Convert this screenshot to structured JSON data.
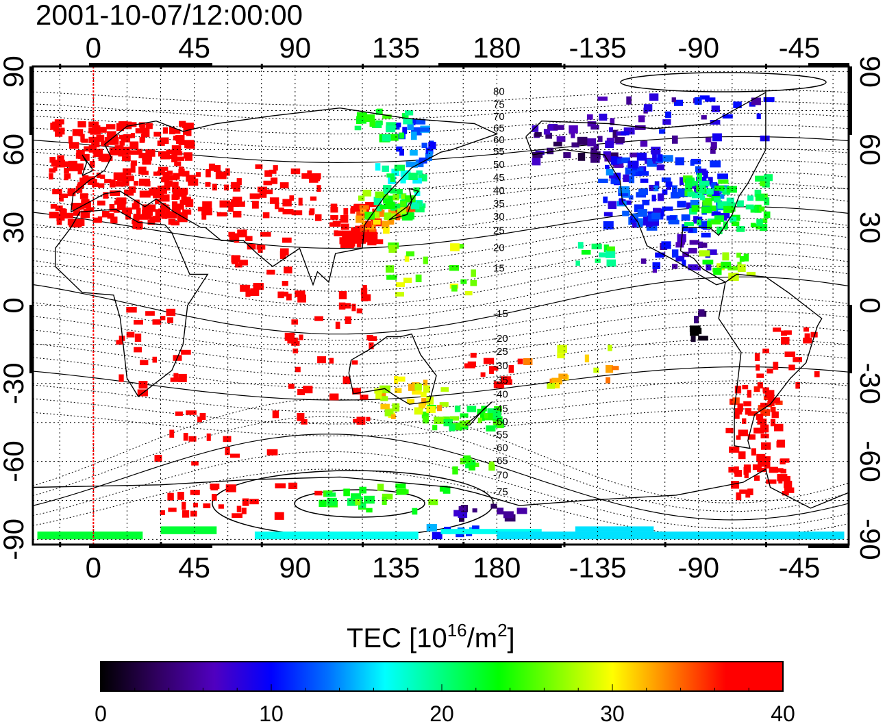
{
  "timestamp": "2001-10-07/12:00:00",
  "top_ticks": [
    {
      "lon": 0,
      "label": "0"
    },
    {
      "lon": 45,
      "label": "45"
    },
    {
      "lon": 90,
      "label": "90"
    },
    {
      "lon": 135,
      "label": "135"
    },
    {
      "lon": 180,
      "label": "180"
    },
    {
      "lon": 225,
      "label": "-135"
    },
    {
      "lon": 270,
      "label": "-90"
    },
    {
      "lon": 315,
      "label": "-45"
    }
  ],
  "bottom_ticks": [
    {
      "lon": 0,
      "label": "0"
    },
    {
      "lon": 45,
      "label": "45"
    },
    {
      "lon": 90,
      "label": "90"
    },
    {
      "lon": 135,
      "label": "135"
    },
    {
      "lon": 180,
      "label": "180"
    },
    {
      "lon": 225,
      "label": "-135"
    },
    {
      "lon": 270,
      "label": "-90"
    },
    {
      "lon": 315,
      "label": "-45"
    }
  ],
  "lat_ticks": [
    {
      "lat": 90,
      "label": "90"
    },
    {
      "lat": 60,
      "label": "60"
    },
    {
      "lat": 30,
      "label": "30"
    },
    {
      "lat": 0,
      "label": "0"
    },
    {
      "lat": -30,
      "label": "-30"
    },
    {
      "lat": -60,
      "label": "-60"
    },
    {
      "lat": -90,
      "label": "-90"
    }
  ],
  "contour_labels": [
    {
      "lat": 81,
      "label": "80"
    },
    {
      "lat": 76,
      "label": "75"
    },
    {
      "lat": 71.5,
      "label": "70"
    },
    {
      "lat": 67,
      "label": "65"
    },
    {
      "lat": 62.5,
      "label": "60"
    },
    {
      "lat": 58,
      "label": "55"
    },
    {
      "lat": 53,
      "label": "50"
    },
    {
      "lat": 48,
      "label": "45"
    },
    {
      "lat": 43,
      "label": "40"
    },
    {
      "lat": 38,
      "label": "35"
    },
    {
      "lat": 33,
      "label": "30"
    },
    {
      "lat": 27.5,
      "label": "25"
    },
    {
      "lat": 21,
      "label": "20"
    },
    {
      "lat": 13,
      "label": "15"
    },
    {
      "lat": -4.5,
      "label": "-15"
    },
    {
      "lat": -14,
      "label": "-20"
    },
    {
      "lat": -19,
      "label": "-25"
    },
    {
      "lat": -24.5,
      "label": "-30"
    },
    {
      "lat": -30,
      "label": "-35"
    },
    {
      "lat": -35.5,
      "label": "-40"
    },
    {
      "lat": -41,
      "label": "-45"
    },
    {
      "lat": -46,
      "label": "-50"
    },
    {
      "lat": -51,
      "label": "-55"
    },
    {
      "lat": -56,
      "label": "-60"
    },
    {
      "lat": -61,
      "label": "-65"
    },
    {
      "lat": -66.5,
      "label": "-70"
    },
    {
      "lat": -73,
      "label": "-75"
    }
  ],
  "colorbar": {
    "title_main": "TEC  [10",
    "title_sup1": "16",
    "title_mid": "/m",
    "title_sup2": "2",
    "title_end": "]",
    "min": 0,
    "max": 40,
    "stops": [
      "#000000",
      "#300060",
      "#5000c0",
      "#0000ff",
      "#0070ff",
      "#00ffff",
      "#00ff80",
      "#00ff00",
      "#80ff00",
      "#ffff00",
      "#ff8000",
      "#ff0000",
      "#ff0000"
    ],
    "tick_labels": [
      {
        "value": 0,
        "label": "0"
      },
      {
        "value": 10,
        "label": "10"
      },
      {
        "value": 20,
        "label": "20"
      },
      {
        "value": 30,
        "label": "30"
      },
      {
        "value": 40,
        "label": "40"
      }
    ]
  },
  "colors": {
    "grid": "#000000",
    "meridian": "#ff0000",
    "frame": "#000000"
  },
  "tec_regions": [
    {
      "lon0": -20,
      "lon1": 42,
      "lat0": 32,
      "lat1": 72,
      "tec": 40,
      "n": 260
    },
    {
      "lon0": 30,
      "lon1": 100,
      "lat0": 35,
      "lat1": 55,
      "tec": 40,
      "n": 70
    },
    {
      "lon0": 105,
      "lon1": 125,
      "lat0": 24,
      "lat1": 40,
      "tec": 40,
      "n": 60
    },
    {
      "lon0": 117,
      "lon1": 140,
      "lat0": 30,
      "lat1": 40,
      "tec": 33,
      "n": 30
    },
    {
      "lon0": 125,
      "lon1": 145,
      "lat0": 38,
      "lat1": 55,
      "tec": 19,
      "n": 35
    },
    {
      "lon0": 118,
      "lon1": 140,
      "lat0": 35,
      "lat1": 45,
      "tec": 25,
      "n": 20
    },
    {
      "lon0": 130,
      "lon1": 150,
      "lat0": 55,
      "lat1": 72,
      "tec": 12,
      "n": 25
    },
    {
      "lon0": 115,
      "lon1": 140,
      "lat0": 65,
      "lat1": 76,
      "tec": 22,
      "n": 20
    },
    {
      "lon0": 195,
      "lon1": 235,
      "lat0": 55,
      "lat1": 70,
      "tec": 5,
      "n": 40
    },
    {
      "lon0": 225,
      "lon1": 280,
      "lat0": 30,
      "lat1": 58,
      "tec": 11,
      "n": 140
    },
    {
      "lon0": 262,
      "lon1": 300,
      "lat0": 30,
      "lat1": 52,
      "tec": 22,
      "n": 70
    },
    {
      "lon0": 220,
      "lon1": 300,
      "lat0": 58,
      "lat1": 82,
      "tec": 8,
      "n": 45
    },
    {
      "lon0": 242,
      "lon1": 275,
      "lat0": 15,
      "lat1": 28,
      "tec": 8,
      "n": 25
    },
    {
      "lon0": 270,
      "lon1": 295,
      "lat0": 12,
      "lat1": 25,
      "tec": 26,
      "n": 15
    },
    {
      "lon0": 295,
      "lon1": 325,
      "lat0": -30,
      "lat1": -5,
      "tec": 40,
      "n": 20
    },
    {
      "lon0": 282,
      "lon1": 305,
      "lat0": -45,
      "lat1": -30,
      "tec": 38,
      "n": 30
    },
    {
      "lon0": 282,
      "lon1": 305,
      "lat0": -58,
      "lat1": -45,
      "tec": 40,
      "n": 15
    },
    {
      "lon0": 282,
      "lon1": 310,
      "lat0": -72,
      "lat1": -58,
      "tec": 40,
      "n": 30
    },
    {
      "lon0": 265,
      "lon1": 270,
      "lat0": -12,
      "lat1": 0,
      "tec": 2,
      "n": 8
    },
    {
      "lon0": 145,
      "lon1": 180,
      "lat0": -48,
      "lat1": -38,
      "tec": 24,
      "n": 35
    },
    {
      "lon0": 125,
      "lon1": 155,
      "lat0": -42,
      "lat1": -25,
      "tec": 30,
      "n": 30
    },
    {
      "lon0": 85,
      "lon1": 125,
      "lat0": -45,
      "lat1": 10,
      "tec": 40,
      "n": 40
    },
    {
      "lon0": 10,
      "lon1": 40,
      "lat0": -35,
      "lat1": 0,
      "tec": 40,
      "n": 22
    },
    {
      "lon0": 20,
      "lon1": 80,
      "lat0": -60,
      "lat1": -40,
      "tec": 40,
      "n": 15
    },
    {
      "lon0": 25,
      "lon1": 100,
      "lat0": -80,
      "lat1": -68,
      "tec": 40,
      "n": 25
    },
    {
      "lon0": 100,
      "lon1": 160,
      "lat0": -78,
      "lat1": -68,
      "tec": 24,
      "n": 25
    },
    {
      "lon0": 155,
      "lon1": 190,
      "lat0": -82,
      "lat1": -76,
      "tec": 5,
      "n": 12
    },
    {
      "lon0": 140,
      "lon1": 170,
      "lat0": -88,
      "lat1": -84,
      "tec": 12,
      "n": 8
    },
    {
      "lon0": 190,
      "lon1": 240,
      "lat0": -30,
      "lat1": -15,
      "tec": 31,
      "n": 15
    },
    {
      "lon0": 215,
      "lon1": 230,
      "lat0": 15,
      "lat1": 25,
      "tec": 22,
      "n": 10
    },
    {
      "lon0": 130,
      "lon1": 170,
      "lat0": 5,
      "lat1": 25,
      "tec": 27,
      "n": 20
    },
    {
      "lon0": 60,
      "lon1": 85,
      "lat0": 5,
      "lat1": 30,
      "tec": 40,
      "n": 25
    },
    {
      "lon0": 165,
      "lon1": 190,
      "lat0": -30,
      "lat1": -18,
      "tec": 40,
      "n": 12
    },
    {
      "lon0": 160,
      "lon1": 180,
      "lat0": -62,
      "lat1": -56,
      "tec": 24,
      "n": 10
    }
  ],
  "tec_bands": [
    {
      "lon0": -25,
      "lon1": 22,
      "lat0": -90,
      "lat1": -87,
      "tec": 22
    },
    {
      "lon0": 30,
      "lon1": 55,
      "lat0": -88,
      "lat1": -85,
      "tec": 22
    },
    {
      "lon0": 72,
      "lon1": 145,
      "lat0": -90,
      "lat1": -87,
      "tec": 17
    },
    {
      "lon0": 155,
      "lon1": 200,
      "lat0": -88,
      "lat1": -86,
      "tec": 17
    },
    {
      "lon0": 180,
      "lon1": 335,
      "lat0": -90,
      "lat1": -87,
      "tec": 16
    },
    {
      "lon0": 215,
      "lon1": 250,
      "lat0": -87,
      "lat1": -85,
      "tec": 16
    }
  ]
}
